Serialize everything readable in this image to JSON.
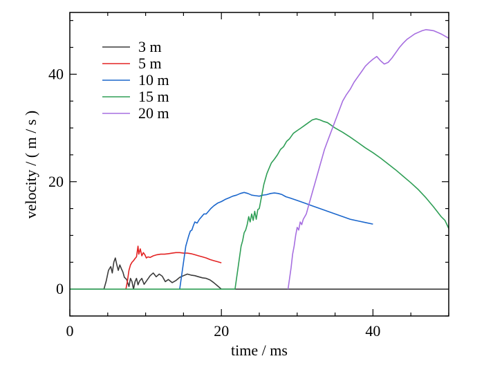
{
  "chart_data": {
    "type": "line",
    "title": "",
    "xlabel": "time / ms",
    "ylabel": "velocity / ( m / s )",
    "xlim": [
      0,
      50
    ],
    "ylim": [
      -5,
      51.5
    ],
    "xticks": [
      0,
      20,
      40
    ],
    "yticks": [
      0,
      20,
      40
    ],
    "x_minor_step": 5,
    "y_minor_step": 5,
    "legend_position": "top-left",
    "series": [
      {
        "name": "3 m",
        "color": "#3a3a3a",
        "points": [
          [
            0,
            0
          ],
          [
            4.5,
            0
          ],
          [
            4.8,
            1.5
          ],
          [
            5.1,
            3.5
          ],
          [
            5.4,
            4.2
          ],
          [
            5.6,
            3.0
          ],
          [
            5.8,
            5.0
          ],
          [
            6.0,
            5.8
          ],
          [
            6.2,
            4.5
          ],
          [
            6.4,
            3.5
          ],
          [
            6.6,
            4.5
          ],
          [
            6.8,
            3.8
          ],
          [
            7.0,
            3.2
          ],
          [
            7.2,
            2.2
          ],
          [
            7.5,
            1.8
          ],
          [
            7.8,
            0.5
          ],
          [
            8.0,
            2.0
          ],
          [
            8.2,
            1.4
          ],
          [
            8.4,
            0
          ],
          [
            8.6,
            1.4
          ],
          [
            8.8,
            2.0
          ],
          [
            9.0,
            0.8
          ],
          [
            9.2,
            1.5
          ],
          [
            9.5,
            2.0
          ],
          [
            9.8,
            0.9
          ],
          [
            10.2,
            1.7
          ],
          [
            10.6,
            2.5
          ],
          [
            11.0,
            3.0
          ],
          [
            11.4,
            2.3
          ],
          [
            11.8,
            2.8
          ],
          [
            12.2,
            2.4
          ],
          [
            12.6,
            1.4
          ],
          [
            13.0,
            1.8
          ],
          [
            13.5,
            1.2
          ],
          [
            14.0,
            1.6
          ],
          [
            14.5,
            2.2
          ],
          [
            15.0,
            2.5
          ],
          [
            15.5,
            2.8
          ],
          [
            16.0,
            2.6
          ],
          [
            16.5,
            2.5
          ],
          [
            17.0,
            2.3
          ],
          [
            17.5,
            2.1
          ],
          [
            18.0,
            2.0
          ],
          [
            18.5,
            1.7
          ],
          [
            19.0,
            1.2
          ],
          [
            19.5,
            0.6
          ],
          [
            20.0,
            0
          ],
          [
            50.0,
            0
          ]
        ]
      },
      {
        "name": "5 m",
        "color": "#e32222",
        "points": [
          [
            7.4,
            0
          ],
          [
            7.6,
            1.5
          ],
          [
            7.8,
            3.5
          ],
          [
            8.0,
            4.5
          ],
          [
            8.2,
            5.0
          ],
          [
            8.4,
            5.3
          ],
          [
            8.6,
            5.7
          ],
          [
            8.8,
            6.0
          ],
          [
            9.0,
            8.0
          ],
          [
            9.1,
            6.5
          ],
          [
            9.3,
            7.5
          ],
          [
            9.5,
            6.2
          ],
          [
            9.7,
            6.8
          ],
          [
            9.9,
            6.4
          ],
          [
            10.1,
            5.8
          ],
          [
            10.3,
            6.0
          ],
          [
            10.6,
            5.9
          ],
          [
            11.0,
            6.2
          ],
          [
            11.5,
            6.4
          ],
          [
            12.0,
            6.5
          ],
          [
            12.5,
            6.5
          ],
          [
            13.0,
            6.6
          ],
          [
            13.5,
            6.7
          ],
          [
            14.0,
            6.8
          ],
          [
            14.5,
            6.8
          ],
          [
            15.0,
            6.7
          ],
          [
            15.5,
            6.7
          ],
          [
            16.0,
            6.6
          ],
          [
            16.5,
            6.4
          ],
          [
            17.0,
            6.2
          ],
          [
            17.5,
            6.0
          ],
          [
            18.0,
            5.8
          ],
          [
            18.5,
            5.5
          ],
          [
            19.0,
            5.3
          ],
          [
            19.5,
            5.1
          ],
          [
            20.0,
            4.9
          ]
        ]
      },
      {
        "name": "10 m",
        "color": "#1a66cc",
        "points": [
          [
            14.5,
            0
          ],
          [
            14.7,
            2.0
          ],
          [
            14.9,
            4.0
          ],
          [
            15.1,
            6.0
          ],
          [
            15.3,
            8.0
          ],
          [
            15.5,
            9.0
          ],
          [
            15.7,
            10.0
          ],
          [
            15.9,
            10.8
          ],
          [
            16.1,
            11.0
          ],
          [
            16.3,
            11.8
          ],
          [
            16.5,
            12.5
          ],
          [
            16.8,
            12.3
          ],
          [
            17.1,
            13.0
          ],
          [
            17.4,
            13.5
          ],
          [
            17.7,
            14.0
          ],
          [
            18.0,
            14.0
          ],
          [
            18.3,
            14.5
          ],
          [
            18.6,
            15.0
          ],
          [
            19.0,
            15.5
          ],
          [
            19.5,
            16.0
          ],
          [
            20.0,
            16.3
          ],
          [
            20.5,
            16.7
          ],
          [
            21.0,
            17.0
          ],
          [
            21.5,
            17.3
          ],
          [
            22.0,
            17.5
          ],
          [
            22.5,
            17.8
          ],
          [
            23.0,
            18.0
          ],
          [
            23.5,
            17.8
          ],
          [
            24.0,
            17.5
          ],
          [
            24.5,
            17.4
          ],
          [
            25.0,
            17.3
          ],
          [
            25.5,
            17.5
          ],
          [
            26.0,
            17.6
          ],
          [
            26.5,
            17.8
          ],
          [
            27.0,
            17.9
          ],
          [
            27.5,
            17.8
          ],
          [
            28.0,
            17.6
          ],
          [
            28.5,
            17.2
          ],
          [
            29.0,
            17.0
          ],
          [
            30.0,
            16.5
          ],
          [
            31.0,
            16.0
          ],
          [
            32.0,
            15.5
          ],
          [
            33.0,
            15.0
          ],
          [
            34.0,
            14.5
          ],
          [
            35.0,
            14.0
          ],
          [
            36.0,
            13.5
          ],
          [
            37.0,
            13.0
          ],
          [
            38.0,
            12.7
          ],
          [
            39.0,
            12.4
          ],
          [
            40.0,
            12.1
          ]
        ]
      },
      {
        "name": "15 m",
        "color": "#2e9e55",
        "points": [
          [
            0,
            0
          ],
          [
            21.8,
            0
          ],
          [
            22.0,
            2.0
          ],
          [
            22.2,
            4.0
          ],
          [
            22.4,
            6.0
          ],
          [
            22.6,
            8.0
          ],
          [
            22.8,
            9.0
          ],
          [
            23.0,
            10.5
          ],
          [
            23.2,
            11.0
          ],
          [
            23.4,
            12.0
          ],
          [
            23.6,
            13.5
          ],
          [
            23.8,
            12.5
          ],
          [
            24.0,
            14.0
          ],
          [
            24.2,
            12.8
          ],
          [
            24.4,
            14.5
          ],
          [
            24.6,
            13.0
          ],
          [
            24.8,
            14.8
          ],
          [
            25.0,
            15.0
          ],
          [
            25.2,
            16.5
          ],
          [
            25.4,
            18.0
          ],
          [
            25.6,
            19.5
          ],
          [
            25.8,
            20.5
          ],
          [
            26.0,
            21.5
          ],
          [
            26.3,
            22.5
          ],
          [
            26.6,
            23.5
          ],
          [
            27.0,
            24.2
          ],
          [
            27.4,
            25.0
          ],
          [
            27.8,
            26.0
          ],
          [
            28.2,
            26.5
          ],
          [
            28.6,
            27.5
          ],
          [
            29.0,
            28.0
          ],
          [
            29.5,
            29.0
          ],
          [
            30.0,
            29.5
          ],
          [
            30.5,
            30.0
          ],
          [
            31.0,
            30.5
          ],
          [
            31.5,
            31.0
          ],
          [
            32.0,
            31.5
          ],
          [
            32.5,
            31.7
          ],
          [
            33.0,
            31.5
          ],
          [
            33.5,
            31.2
          ],
          [
            34.0,
            31.0
          ],
          [
            34.5,
            30.5
          ],
          [
            35.0,
            30.0
          ],
          [
            36.0,
            29.2
          ],
          [
            37.0,
            28.3
          ],
          [
            38.0,
            27.3
          ],
          [
            39.0,
            26.3
          ],
          [
            40.0,
            25.4
          ],
          [
            41.0,
            24.4
          ],
          [
            42.0,
            23.3
          ],
          [
            43.0,
            22.2
          ],
          [
            44.0,
            21.0
          ],
          [
            45.0,
            19.8
          ],
          [
            46.0,
            18.5
          ],
          [
            47.0,
            17.0
          ],
          [
            48.0,
            15.3
          ],
          [
            49.0,
            13.5
          ],
          [
            49.5,
            12.8
          ],
          [
            50.0,
            11.3
          ]
        ]
      },
      {
        "name": "20 m",
        "color": "#a66ee0",
        "points": [
          [
            28.8,
            0
          ],
          [
            29.0,
            2.0
          ],
          [
            29.2,
            4.0
          ],
          [
            29.4,
            6.5
          ],
          [
            29.6,
            8.0
          ],
          [
            29.8,
            10.0
          ],
          [
            30.0,
            11.5
          ],
          [
            30.2,
            11.0
          ],
          [
            30.4,
            12.5
          ],
          [
            30.6,
            12.0
          ],
          [
            30.8,
            13.0
          ],
          [
            31.0,
            13.5
          ],
          [
            31.2,
            14.0
          ],
          [
            31.5,
            15.5
          ],
          [
            31.8,
            17.0
          ],
          [
            32.1,
            18.5
          ],
          [
            32.4,
            20.0
          ],
          [
            32.7,
            21.5
          ],
          [
            33.0,
            23.0
          ],
          [
            33.3,
            24.5
          ],
          [
            33.6,
            26.0
          ],
          [
            34.0,
            27.5
          ],
          [
            34.4,
            29.0
          ],
          [
            34.8,
            30.5
          ],
          [
            35.2,
            32.0
          ],
          [
            35.6,
            33.5
          ],
          [
            36.0,
            35.0
          ],
          [
            36.5,
            36.2
          ],
          [
            37.0,
            37.2
          ],
          [
            37.5,
            38.5
          ],
          [
            38.0,
            39.5
          ],
          [
            38.5,
            40.5
          ],
          [
            39.0,
            41.5
          ],
          [
            39.5,
            42.2
          ],
          [
            40.0,
            42.8
          ],
          [
            40.5,
            43.3
          ],
          [
            41.0,
            42.5
          ],
          [
            41.5,
            41.9
          ],
          [
            42.0,
            42.2
          ],
          [
            42.5,
            43.0
          ],
          [
            43.0,
            44.0
          ],
          [
            43.5,
            45.0
          ],
          [
            44.0,
            45.8
          ],
          [
            44.5,
            46.5
          ],
          [
            45.0,
            47.0
          ],
          [
            45.5,
            47.5
          ],
          [
            46.0,
            47.8
          ],
          [
            46.5,
            48.1
          ],
          [
            47.0,
            48.3
          ],
          [
            47.5,
            48.2
          ],
          [
            48.0,
            48.1
          ],
          [
            48.5,
            47.8
          ],
          [
            49.0,
            47.5
          ],
          [
            49.5,
            47.1
          ],
          [
            50.0,
            46.7
          ]
        ]
      }
    ]
  }
}
